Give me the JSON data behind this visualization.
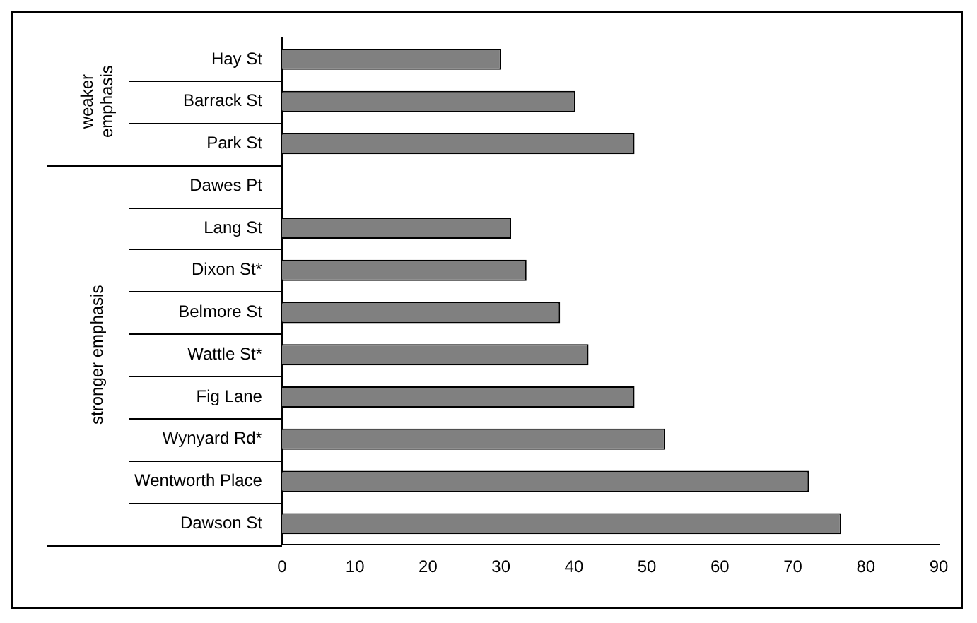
{
  "chart_data": {
    "type": "bar",
    "orientation": "horizontal",
    "categories": [
      "Hay St",
      "Barrack St",
      "Park St",
      "Dawes Pt",
      "Lang St",
      "Dixon St*",
      "Belmore St",
      "Wattle St*",
      "Fig Lane",
      "Wynyard Rd*",
      "Wentworth Place",
      "Dawson St"
    ],
    "values": [
      30,
      40.2,
      48.3,
      null,
      31.4,
      33.5,
      38.1,
      42,
      48.3,
      52.5,
      72.2,
      76.6
    ],
    "color": "#808080",
    "xlim": [
      0,
      90
    ],
    "xticks": [
      0,
      10,
      20,
      30,
      40,
      50,
      60,
      70,
      80,
      90
    ],
    "annotations": [
      "weaker emphasis",
      "stronger emphasis"
    ],
    "grid": false,
    "legend": false
  }
}
